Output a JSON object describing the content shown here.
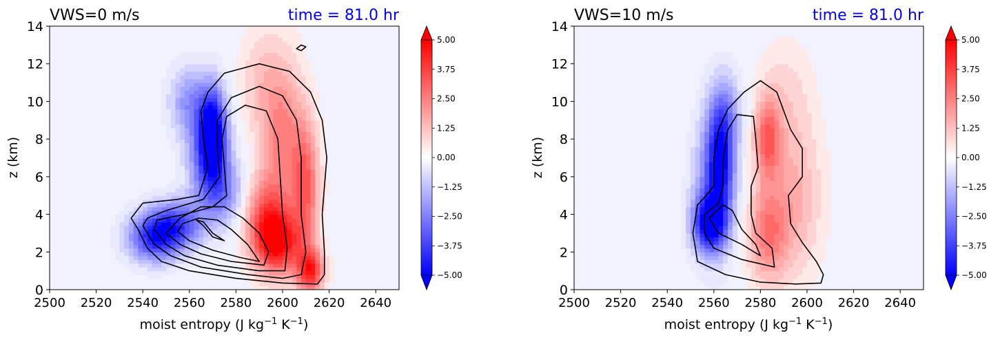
{
  "colors": {
    "contour_line": "#000000",
    "time_label": "#0000ff",
    "title": "#000000",
    "background_field": "#f2f2ff"
  },
  "colorbar_ticks": [
    "5.00",
    "3.75",
    "2.50",
    "1.25",
    "0.00",
    "−1.25",
    "−2.50",
    "−3.75",
    "−5.00"
  ],
  "chart_data": [
    {
      "type": "heatmap",
      "title": "VWS=0 m/s",
      "time_label": "time = 81.0 hr",
      "xlabel": "moist entropy (J kg",
      "xlabel_sup1": "−1",
      "xlabel_mid": " K",
      "xlabel_sup2": "−1",
      "xlabel_end": ")",
      "ylabel": "z (km)",
      "xlim": [
        2500,
        2650
      ],
      "ylim": [
        0,
        14
      ],
      "xticks": [
        "2500",
        "2520",
        "2540",
        "2560",
        "2580",
        "2600",
        "2620",
        "2640"
      ],
      "yticks": [
        "0",
        "2",
        "4",
        "6",
        "8",
        "10",
        "12",
        "14"
      ],
      "colorbar_range": [
        -5,
        5
      ],
      "colormap": "bwr",
      "negative_features": [
        {
          "s": 2570,
          "z": 8.5,
          "value": -4.5,
          "ws": 4,
          "wz": 1.6
        },
        {
          "s": 2568,
          "z": 7.0,
          "value": -3.0,
          "ws": 6,
          "wz": 1.8
        },
        {
          "s": 2545,
          "z": 2.8,
          "value": -4.0,
          "ws": 8,
          "wz": 0.9
        },
        {
          "s": 2555,
          "z": 3.5,
          "value": -3.0,
          "ws": 8,
          "wz": 0.9
        },
        {
          "s": 2560,
          "z": 10.0,
          "value": -2.0,
          "ws": 6,
          "wz": 1.3
        },
        {
          "s": 2575,
          "z": 5.2,
          "value": -2.0,
          "ws": 6,
          "wz": 1.2
        }
      ],
      "positive_features": [
        {
          "s": 2598,
          "z": 2.5,
          "value": 4.5,
          "ws": 7,
          "wz": 1.2
        },
        {
          "s": 2612,
          "z": 1.0,
          "value": 4.0,
          "ws": 4,
          "wz": 0.8
        },
        {
          "s": 2600,
          "z": 8.0,
          "value": 2.5,
          "ws": 6,
          "wz": 3.0
        },
        {
          "s": 2610,
          "z": 5.5,
          "value": 3.0,
          "ws": 4,
          "wz": 2.5
        },
        {
          "s": 2592,
          "z": 4.0,
          "value": 2.5,
          "ws": 6,
          "wz": 1.5
        },
        {
          "s": 2590,
          "z": 11.0,
          "value": 1.0,
          "ws": 6,
          "wz": 2.0
        }
      ],
      "contours": [
        [
          [
            2535,
            3.8
          ],
          [
            2538,
            3.2
          ],
          [
            2542,
            2.2
          ],
          [
            2548,
            1.5
          ],
          [
            2560,
            1.0
          ],
          [
            2580,
            0.6
          ],
          [
            2600,
            0.35
          ],
          [
            2615,
            0.3
          ],
          [
            2618,
            0.8
          ],
          [
            2618,
            2.0
          ],
          [
            2617,
            4.0
          ],
          [
            2619,
            7.0
          ],
          [
            2617,
            9.0
          ],
          [
            2612,
            10.5
          ],
          [
            2603,
            11.6
          ],
          [
            2590,
            12.0
          ],
          [
            2575,
            11.5
          ],
          [
            2568,
            10.5
          ],
          [
            2565,
            9.5
          ],
          [
            2566,
            8.0
          ],
          [
            2568,
            6.5
          ],
          [
            2564,
            5.0
          ],
          [
            2555,
            4.8
          ],
          [
            2540,
            4.6
          ],
          [
            2535,
            3.8
          ]
        ],
        [
          [
            2540,
            3.4
          ],
          [
            2545,
            2.4
          ],
          [
            2552,
            1.8
          ],
          [
            2565,
            1.2
          ],
          [
            2585,
            0.8
          ],
          [
            2600,
            0.6
          ],
          [
            2608,
            0.8
          ],
          [
            2610,
            2.0
          ],
          [
            2608,
            4.0
          ],
          [
            2608,
            7.0
          ],
          [
            2606,
            9.0
          ],
          [
            2600,
            10.3
          ],
          [
            2590,
            10.8
          ],
          [
            2578,
            10.2
          ],
          [
            2572,
            9.0
          ],
          [
            2572,
            7.5
          ],
          [
            2573,
            6.0
          ],
          [
            2566,
            4.8
          ],
          [
            2550,
            4.2
          ],
          [
            2542,
            3.8
          ],
          [
            2540,
            3.4
          ]
        ],
        [
          [
            2545,
            3.2
          ],
          [
            2550,
            2.4
          ],
          [
            2558,
            1.8
          ],
          [
            2572,
            1.3
          ],
          [
            2590,
            1.0
          ],
          [
            2601,
            1.0
          ],
          [
            2602,
            2.2
          ],
          [
            2600,
            4.0
          ],
          [
            2599,
            6.0
          ],
          [
            2598,
            8.0
          ],
          [
            2593,
            9.5
          ],
          [
            2584,
            9.8
          ],
          [
            2576,
            9.2
          ],
          [
            2574,
            8.0
          ],
          [
            2575,
            6.5
          ],
          [
            2576,
            5.0
          ],
          [
            2570,
            4.4
          ],
          [
            2558,
            4.0
          ],
          [
            2546,
            3.7
          ],
          [
            2545,
            3.2
          ]
        ],
        [
          [
            2550,
            3.0
          ],
          [
            2556,
            2.4
          ],
          [
            2565,
            1.9
          ],
          [
            2578,
            1.5
          ],
          [
            2592,
            1.3
          ],
          [
            2594,
            2.0
          ],
          [
            2590,
            3.0
          ],
          [
            2583,
            3.8
          ],
          [
            2575,
            4.4
          ],
          [
            2565,
            4.4
          ],
          [
            2556,
            3.8
          ],
          [
            2550,
            3.0
          ]
        ],
        [
          [
            2555,
            3.1
          ],
          [
            2560,
            2.6
          ],
          [
            2570,
            2.1
          ],
          [
            2582,
            1.7
          ],
          [
            2590,
            1.5
          ],
          [
            2585,
            2.4
          ],
          [
            2578,
            3.2
          ],
          [
            2572,
            3.7
          ],
          [
            2564,
            3.8
          ],
          [
            2557,
            3.5
          ],
          [
            2555,
            3.1
          ]
        ],
        [
          [
            2563,
            3.7
          ],
          [
            2566,
            3.4
          ],
          [
            2570,
            2.8
          ],
          [
            2575,
            2.6
          ],
          [
            2570,
            3.0
          ],
          [
            2566,
            3.6
          ],
          [
            2563,
            3.7
          ]
        ],
        [
          [
            2606,
            12.8
          ],
          [
            2608,
            13.0
          ],
          [
            2610,
            12.9
          ],
          [
            2608,
            12.7
          ],
          [
            2606,
            12.8
          ]
        ]
      ]
    },
    {
      "type": "heatmap",
      "title": "VWS=10 m/s",
      "time_label": "time = 81.0 hr",
      "xlabel": "moist entropy (J kg",
      "xlabel_sup1": "−1",
      "xlabel_mid": " K",
      "xlabel_sup2": "−1",
      "xlabel_end": ")",
      "ylabel": "z (km)",
      "xlim": [
        2500,
        2650
      ],
      "ylim": [
        0,
        14
      ],
      "xticks": [
        "2500",
        "2520",
        "2540",
        "2560",
        "2580",
        "2600",
        "2620",
        "2640"
      ],
      "yticks": [
        "0",
        "2",
        "4",
        "6",
        "8",
        "10",
        "12",
        "14"
      ],
      "colorbar_range": [
        -5,
        5
      ],
      "colormap": "bwr",
      "negative_features": [
        {
          "s": 2558,
          "z": 3.5,
          "value": -4.5,
          "ws": 5,
          "wz": 1.0
        },
        {
          "s": 2563,
          "z": 7.0,
          "value": -3.5,
          "ws": 4,
          "wz": 2.0
        },
        {
          "s": 2560,
          "z": 5.5,
          "value": -2.5,
          "ws": 6,
          "wz": 2.5
        },
        {
          "s": 2565,
          "z": 9.5,
          "value": -1.5,
          "ws": 5,
          "wz": 1.5
        }
      ],
      "positive_features": [
        {
          "s": 2583,
          "z": 8.0,
          "value": 3.0,
          "ws": 4,
          "wz": 1.5
        },
        {
          "s": 2583,
          "z": 3.0,
          "value": 2.5,
          "ws": 6,
          "wz": 1.8
        },
        {
          "s": 2595,
          "z": 5.0,
          "value": 1.5,
          "ws": 8,
          "wz": 3.0
        },
        {
          "s": 2590,
          "z": 10.5,
          "value": 0.7,
          "ws": 8,
          "wz": 2.0
        }
      ],
      "contours": [
        [
          [
            2553,
            4.5
          ],
          [
            2551,
            3.0
          ],
          [
            2553,
            1.5
          ],
          [
            2565,
            0.8
          ],
          [
            2580,
            0.4
          ],
          [
            2595,
            0.3
          ],
          [
            2606,
            0.35
          ],
          [
            2607,
            0.8
          ],
          [
            2604,
            1.5
          ],
          [
            2598,
            2.5
          ],
          [
            2593,
            3.5
          ],
          [
            2592,
            5.0
          ],
          [
            2598,
            6.0
          ],
          [
            2598,
            7.5
          ],
          [
            2593,
            8.5
          ],
          [
            2590,
            9.5
          ],
          [
            2587,
            10.5
          ],
          [
            2580,
            11.1
          ],
          [
            2573,
            10.5
          ],
          [
            2566,
            9.6
          ],
          [
            2562,
            8.5
          ],
          [
            2560,
            7.0
          ],
          [
            2560,
            5.5
          ],
          [
            2556,
            4.9
          ],
          [
            2553,
            4.5
          ]
        ],
        [
          [
            2556,
            4.0
          ],
          [
            2556,
            3.0
          ],
          [
            2560,
            2.2
          ],
          [
            2572,
            1.6
          ],
          [
            2586,
            1.2
          ],
          [
            2585,
            2.2
          ],
          [
            2578,
            3.0
          ],
          [
            2576,
            4.0
          ],
          [
            2576,
            5.5
          ],
          [
            2579,
            6.5
          ],
          [
            2578,
            8.0
          ],
          [
            2577,
            9.2
          ],
          [
            2570,
            9.3
          ],
          [
            2566,
            8.5
          ],
          [
            2564,
            7.0
          ],
          [
            2564,
            5.5
          ],
          [
            2562,
            4.6
          ],
          [
            2556,
            4.0
          ]
        ],
        [
          [
            2558,
            3.8
          ],
          [
            2562,
            3.0
          ],
          [
            2572,
            2.4
          ],
          [
            2580,
            1.8
          ],
          [
            2578,
            2.4
          ],
          [
            2572,
            3.2
          ],
          [
            2568,
            4.2
          ],
          [
            2564,
            4.5
          ],
          [
            2558,
            3.8
          ]
        ]
      ]
    }
  ]
}
